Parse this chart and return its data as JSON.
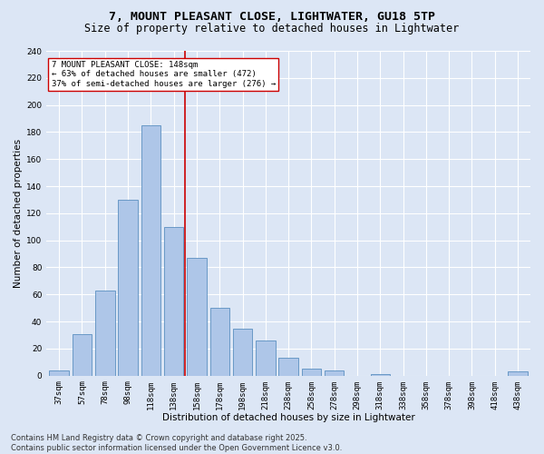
{
  "title_line1": "7, MOUNT PLEASANT CLOSE, LIGHTWATER, GU18 5TP",
  "title_line2": "Size of property relative to detached houses in Lightwater",
  "xlabel": "Distribution of detached houses by size in Lightwater",
  "ylabel": "Number of detached properties",
  "categories": [
    "37sqm",
    "57sqm",
    "78sqm",
    "98sqm",
    "118sqm",
    "138sqm",
    "158sqm",
    "178sqm",
    "198sqm",
    "218sqm",
    "238sqm",
    "258sqm",
    "278sqm",
    "298sqm",
    "318sqm",
    "338sqm",
    "358sqm",
    "378sqm",
    "398sqm",
    "418sqm",
    "438sqm"
  ],
  "values": [
    4,
    31,
    63,
    130,
    185,
    110,
    87,
    50,
    35,
    26,
    13,
    5,
    4,
    0,
    1,
    0,
    0,
    0,
    0,
    0,
    3
  ],
  "bar_color": "#aec6e8",
  "bar_edge_color": "#5a8fc0",
  "background_color": "#dce6f5",
  "grid_color": "#ffffff",
  "vline_x": 5.5,
  "vline_color": "#cc0000",
  "annotation_text": "7 MOUNT PLEASANT CLOSE: 148sqm\n← 63% of detached houses are smaller (472)\n37% of semi-detached houses are larger (276) →",
  "annotation_box_color": "#ffffff",
  "annotation_box_edge": "#cc0000",
  "ylim": [
    0,
    240
  ],
  "yticks": [
    0,
    20,
    40,
    60,
    80,
    100,
    120,
    140,
    160,
    180,
    200,
    220,
    240
  ],
  "footer_line1": "Contains HM Land Registry data © Crown copyright and database right 2025.",
  "footer_line2": "Contains public sector information licensed under the Open Government Licence v3.0.",
  "title_fontsize": 9.5,
  "subtitle_fontsize": 8.5,
  "axis_label_fontsize": 7.5,
  "tick_fontsize": 6.5,
  "annotation_fontsize": 6.5,
  "footer_fontsize": 6.0
}
